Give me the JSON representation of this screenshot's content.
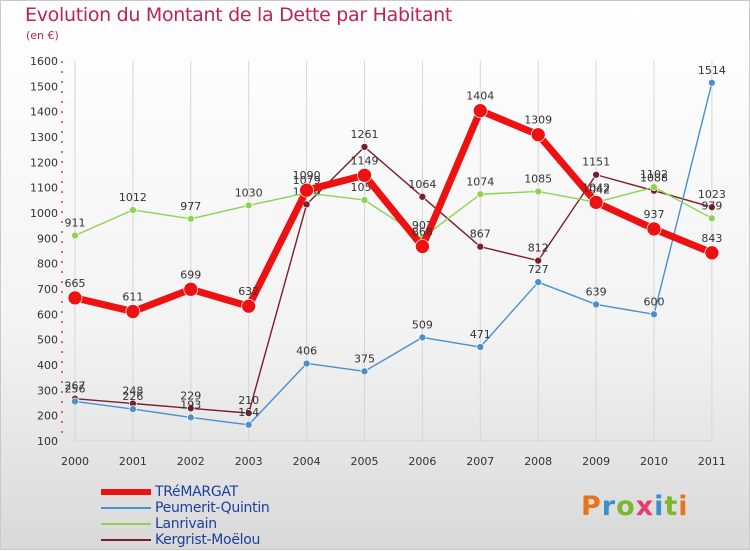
{
  "title": "Evolution du Montant de la Dette par Habitant",
  "subtitle": "(en €)",
  "brand": "Proxiti",
  "colors": {
    "title": "#c0205a",
    "axis_text": "#333333",
    "legend_text": "#1a3fa0"
  },
  "chart_data": {
    "type": "line",
    "x": [
      "2000",
      "2001",
      "2002",
      "2003",
      "2004",
      "2005",
      "2006",
      "2007",
      "2008",
      "2009",
      "2010",
      "2011"
    ],
    "ylim": [
      100,
      1600
    ],
    "yticks": [
      100,
      200,
      300,
      400,
      500,
      600,
      700,
      800,
      900,
      1000,
      1100,
      1200,
      1300,
      1400,
      1500,
      1600
    ],
    "grid": "vertical",
    "legend_position": "bottom-left",
    "series": [
      {
        "name": "Kergrist-Moëlou",
        "color": "#7a1f2a",
        "values": [
          267,
          248,
          229,
          210,
          1034,
          1261,
          1064,
          867,
          812,
          1151,
          1088,
          1023
        ],
        "labels": [
          "267",
          "248",
          "229",
          "210",
          "1034",
          "1261",
          "1064",
          "867",
          "812",
          "1151",
          "1088",
          "1023"
        ]
      },
      {
        "name": "Peumerit-Quintin",
        "color": "#4a8fd0",
        "values": [
          256,
          226,
          193,
          164,
          406,
          375,
          509,
          471,
          727,
          639,
          600,
          1514
        ],
        "labels": [
          "256",
          "226",
          "193",
          "164",
          "406",
          "375",
          "509",
          "471",
          "727",
          "639",
          "600",
          "1514"
        ]
      },
      {
        "name": "Lanrivain",
        "color": "#8ed34f",
        "values": [
          911,
          1012,
          977,
          1030,
          1079,
          1051,
          902,
          1074,
          1085,
          1042,
          1102,
          979
        ],
        "labels": [
          "911",
          "1012",
          "977",
          "1030",
          "1079",
          "1051",
          "902",
          "1074",
          "1085",
          "1042",
          "1102",
          "979"
        ]
      },
      {
        "name": "TRéMARGAT",
        "color": "#ee1111",
        "values": [
          665,
          611,
          699,
          632,
          1090,
          1149,
          868,
          1404,
          1309,
          1042,
          937,
          843
        ],
        "labels": [
          "665",
          "611",
          "699",
          "632",
          "1090",
          "1149",
          "868",
          "1404",
          "1309",
          "1042",
          "937",
          "843"
        ]
      }
    ],
    "legend": [
      {
        "name": "TRéMARGAT",
        "color": "#ee1111",
        "bold": true
      },
      {
        "name": "Peumerit-Quintin",
        "color": "#4a8fd0"
      },
      {
        "name": "Lanrivain",
        "color": "#8ed34f"
      },
      {
        "name": "Kergrist-Moëlou",
        "color": "#7a1f2a"
      }
    ]
  }
}
